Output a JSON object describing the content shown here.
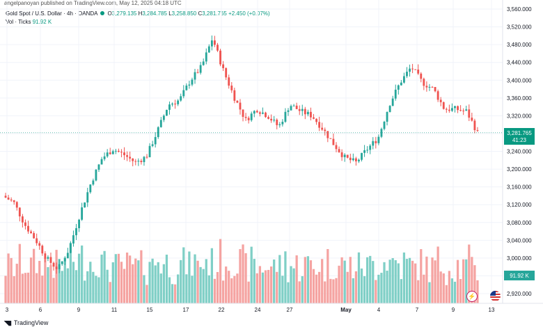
{
  "header": {
    "publisher_text": "angelpanoyan published on TradingView.com, May 12, 2025 04:18 UTC"
  },
  "legend": {
    "symbol": "Gold Spot / U.S. Dollar · 4h · OANDA",
    "open_label": "O",
    "open": "3,279.135",
    "high_label": "H",
    "high": "3,284.785",
    "low_label": "L",
    "low": "3,258.850",
    "close_label": "C",
    "close": "3,281.765",
    "change": "+2.450 (+0.07%)",
    "volume_label": "Vol · Ticks",
    "volume": "91.92 K"
  },
  "footer": {
    "brand": "TradingView"
  },
  "chart_data": {
    "type": "candlestick",
    "y_axis_labels": [
      "3,560.000",
      "3,520.000",
      "3,480.000",
      "3,440.000",
      "3,400.000",
      "3,360.000",
      "3,320.000",
      "3,280.000",
      "3,240.000",
      "3,200.000",
      "3,160.000",
      "3,120.000",
      "3,080.000",
      "3,040.000",
      "3,000.000",
      "2,960.000",
      "2,920.000"
    ],
    "y_axis_values": [
      3560,
      3520,
      3480,
      3440,
      3400,
      3360,
      3320,
      3280,
      3240,
      3200,
      3160,
      3120,
      3080,
      3040,
      3000,
      2960,
      2920
    ],
    "ylim": [
      2912,
      3568
    ],
    "x_labels": [
      "3",
      "6",
      "9",
      "11",
      "15",
      "17",
      "22",
      "24",
      "27",
      "May",
      "4",
      "7",
      "9",
      "13"
    ],
    "last_price_label": "3,281.765",
    "countdown_label": "41:23",
    "last_price": 3281.765,
    "volume_label_tag": "91.92 K",
    "colors": {
      "up": "#26a69a",
      "down": "#ef5350",
      "up_vol": "#7fcfc6",
      "down_vol": "#f5a3a1",
      "last_price": "#089981"
    },
    "price_path": [
      [
        3,
        3140
      ],
      [
        4,
        3125
      ],
      [
        5,
        3075
      ],
      [
        6,
        3040
      ],
      [
        7,
        2998
      ],
      [
        8,
        2975
      ],
      [
        9,
        3020
      ],
      [
        10,
        3100
      ],
      [
        11,
        3170
      ],
      [
        12,
        3225
      ],
      [
        13,
        3245
      ],
      [
        14,
        3232
      ],
      [
        15,
        3215
      ],
      [
        16,
        3228
      ],
      [
        17,
        3285
      ],
      [
        18,
        3345
      ],
      [
        19,
        3355
      ],
      [
        20,
        3400
      ],
      [
        21,
        3430
      ],
      [
        22,
        3495
      ],
      [
        23,
        3420
      ],
      [
        24,
        3360
      ],
      [
        25,
        3310
      ],
      [
        26,
        3335
      ],
      [
        27,
        3320
      ],
      [
        28,
        3295
      ],
      [
        29,
        3345
      ],
      [
        30,
        3330
      ],
      [
        31,
        3320
      ],
      [
        32,
        3290
      ],
      [
        33,
        3255
      ],
      [
        34,
        3225
      ],
      [
        35,
        3215
      ],
      [
        36,
        3245
      ],
      [
        37,
        3270
      ],
      [
        38,
        3345
      ],
      [
        39,
        3395
      ],
      [
        40,
        3430
      ],
      [
        41,
        3395
      ],
      [
        42,
        3380
      ],
      [
        43,
        3335
      ],
      [
        44,
        3335
      ],
      [
        45,
        3330
      ],
      [
        46,
        3282
      ]
    ],
    "volume_max": 100
  }
}
